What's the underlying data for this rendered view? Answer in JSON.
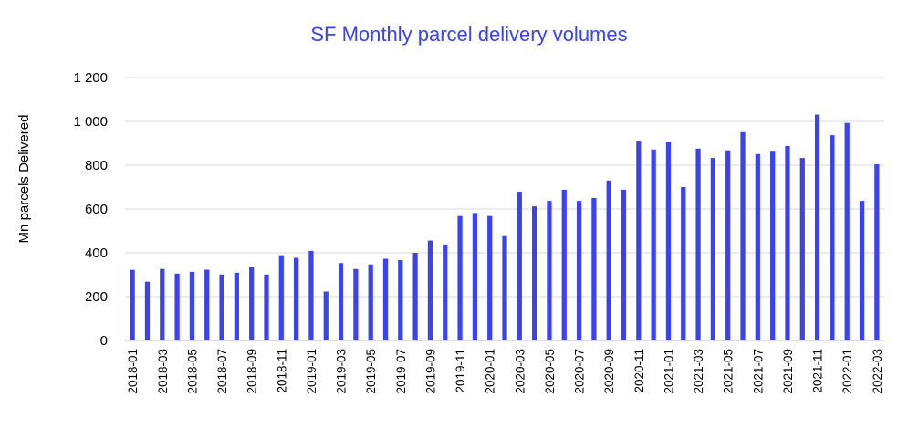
{
  "chart_data": {
    "type": "bar",
    "title": "SF Monthly parcel delivery volumes",
    "ylabel": "Mn parcels Delivered",
    "xlabel": "",
    "ylim": [
      0,
      1200
    ],
    "yticks": [
      0,
      200,
      400,
      600,
      800,
      1000,
      1200
    ],
    "ytick_labels": [
      "0",
      "200",
      "400",
      "600",
      "800",
      "1 000",
      "1 200"
    ],
    "grid": true,
    "legend": "none",
    "bar_color": "#3b42f0",
    "title_color": "#3b42f0",
    "grid_color": "#d9d9d9",
    "categories": [
      "2018-01",
      "2018-02",
      "2018-03",
      "2018-04",
      "2018-05",
      "2018-06",
      "2018-07",
      "2018-08",
      "2018-09",
      "2018-10",
      "2018-11",
      "2018-12",
      "2019-01",
      "2019-02",
      "2019-03",
      "2019-04",
      "2019-05",
      "2019-06",
      "2019-07",
      "2019-08",
      "2019-09",
      "2019-10",
      "2019-11",
      "2019-12",
      "2020-01",
      "2020-02",
      "2020-03",
      "2020-04",
      "2020-05",
      "2020-06",
      "2020-07",
      "2020-08",
      "2020-09",
      "2020-10",
      "2020-11",
      "2020-12",
      "2021-01",
      "2021-02",
      "2021-03",
      "2021-04",
      "2021-05",
      "2021-06",
      "2021-07",
      "2021-08",
      "2021-09",
      "2021-10",
      "2021-11",
      "2021-12",
      "2022-01",
      "2022-02",
      "2022-03"
    ],
    "x_tick_labels": [
      "2018-01",
      "2018-03",
      "2018-05",
      "2018-07",
      "2018-09",
      "2018-11",
      "2019-01",
      "2019-03",
      "2019-05",
      "2019-07",
      "2019-09",
      "2019-11",
      "2020-01",
      "2020-03",
      "2020-05",
      "2020-07",
      "2020-09",
      "2020-11",
      "2021-01",
      "2021-03",
      "2021-05",
      "2021-07",
      "2021-09",
      "2021-11",
      "2022-01",
      "2022-03"
    ],
    "values": [
      322,
      268,
      326,
      305,
      313,
      323,
      301,
      309,
      334,
      301,
      389,
      377,
      409,
      223,
      353,
      326,
      347,
      373,
      367,
      400,
      456,
      438,
      568,
      582,
      568,
      476,
      679,
      612,
      637,
      688,
      637,
      650,
      730,
      688,
      908,
      872,
      904,
      700,
      876,
      833,
      868,
      951,
      851,
      866,
      888,
      833,
      1031,
      937,
      993,
      637,
      804
    ]
  }
}
